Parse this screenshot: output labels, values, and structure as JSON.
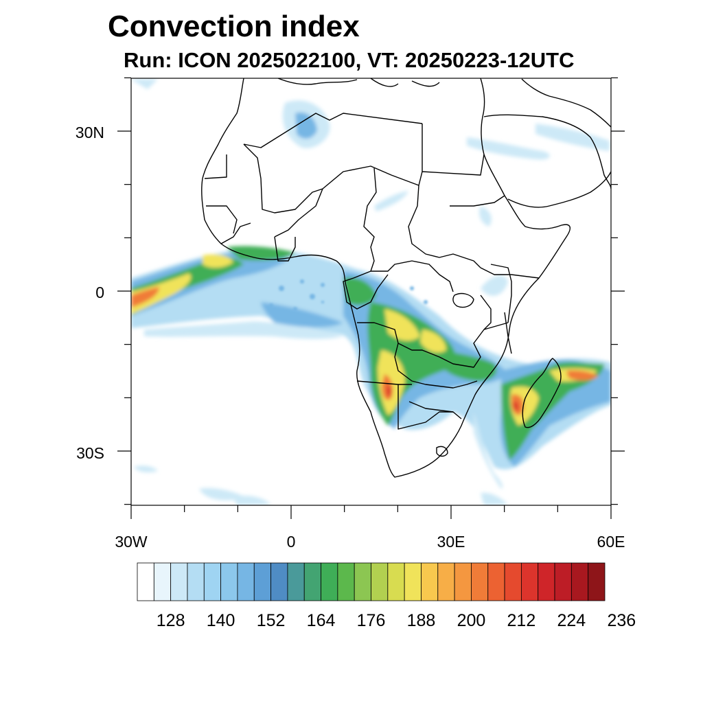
{
  "title": "Convection index",
  "subtitle": "Run: ICON 2025022100,  VT: 20250223-12UTC",
  "lat_labels": [
    "30N",
    "0",
    "30S"
  ],
  "lon_labels": [
    "30W",
    "0",
    "30E",
    "60E"
  ],
  "colorbar": {
    "tick_labels": [
      "128",
      "140",
      "152",
      "164",
      "176",
      "188",
      "200",
      "212",
      "224",
      "236"
    ],
    "colors": [
      "#ffffff",
      "#e8f5fc",
      "#cde9f7",
      "#b4ddf3",
      "#9fd4f2",
      "#8cc8ec",
      "#76b6e4",
      "#5d9fd6",
      "#4f8cc4",
      "#4a9a9a",
      "#43a472",
      "#3fae57",
      "#5cb84c",
      "#8cc652",
      "#b2d050",
      "#d8dc50",
      "#f0e35a",
      "#f8c84e",
      "#f7ae47",
      "#f49740",
      "#f07c38",
      "#ec6232",
      "#e54a2e",
      "#dc342c",
      "#cf2529",
      "#bd1d26",
      "#a8181f",
      "#8e1519"
    ]
  }
}
